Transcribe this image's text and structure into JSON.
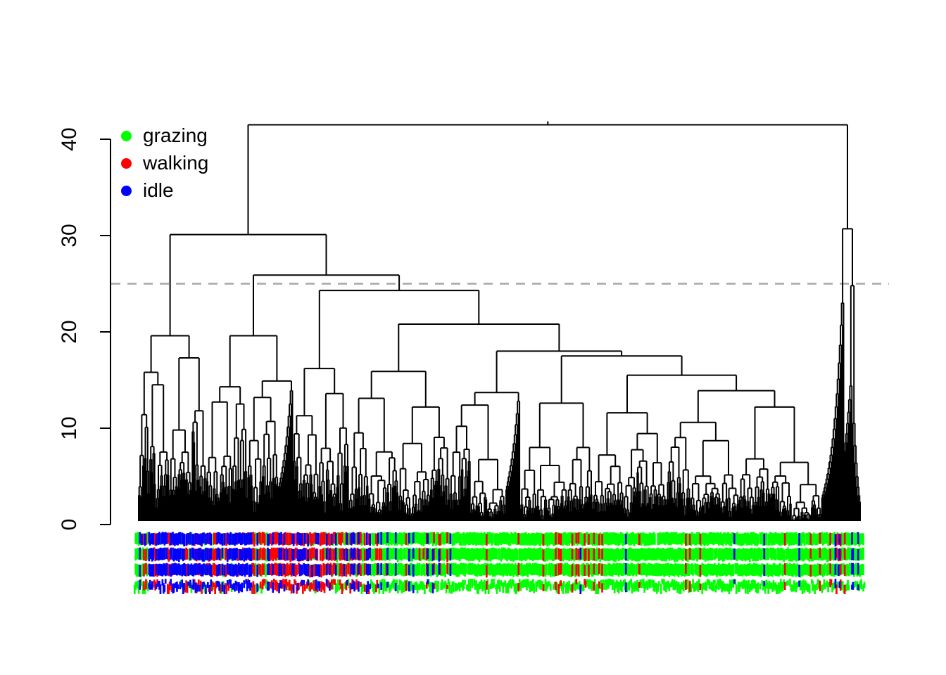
{
  "figure": {
    "background": "#ffffff"
  },
  "legend": {
    "items": [
      {
        "label": "grazing",
        "color": "#00ff00"
      },
      {
        "label": "walking",
        "color": "#ff0000"
      },
      {
        "label": "idle",
        "color": "#0000ff"
      }
    ]
  },
  "y_axis": {
    "tick_labels": [
      "0",
      "10",
      "20",
      "30",
      "40"
    ]
  },
  "chart_data": {
    "type": "dendrogram",
    "title": "",
    "xlabel": "",
    "ylabel": "",
    "y_ticks": [
      0,
      10,
      20,
      30,
      40
    ],
    "y_range": [
      0,
      42
    ],
    "grid": false,
    "legend_position": "top-left",
    "line_color": "#000000",
    "cutoff_line": {
      "height": 25,
      "color": "#a6a6a6",
      "style": "dashed"
    },
    "root_height": 41.5,
    "leaf_count": 700,
    "class_colors": {
      "grazing": "#00ff00",
      "walking": "#ff0000",
      "idle": "#0000ff"
    },
    "major_merge_heights": [
      41.5,
      30.7,
      30.1,
      25.9,
      24.8,
      24.3,
      23.0,
      20.8,
      19.6,
      18.0,
      17.5,
      16.2,
      15.9,
      15.5,
      13.9,
      13.7,
      12.6
    ],
    "skeleton": {
      "h": 41.5,
      "c": [
        {
          "h": 30.1,
          "c": [
            {
              "h": 19.6,
              "c": [
                {
                  "n": 30,
                  "h": 15.8
                },
                {
                  "n": 36,
                  "h": 17.3
                }
              ]
            },
            {
              "h": 25.9,
              "c": [
                {
                  "h": 19.6,
                  "c": [
                    {
                      "n": 40,
                      "h": 14.3
                    },
                    {
                      "h": 14.9,
                      "c": [
                        {
                          "n": 30,
                          "h": 13.2
                        },
                        {
                          "n": 14,
                          "h": 13.9,
                          "mode": "spike"
                        }
                      ]
                    }
                  ]
                },
                {
                  "h": 24.3,
                  "c": [
                    {
                      "h": 16.2,
                      "c": [
                        {
                          "n": 25,
                          "h": 11.3
                        },
                        {
                          "n": 29,
                          "h": 13.6
                        }
                      ]
                    },
                    {
                      "h": 20.8,
                      "c": [
                        {
                          "h": 15.9,
                          "c": [
                            {
                              "n": 48,
                              "h": 13.1
                            },
                            {
                              "n": 50,
                              "h": 12.2
                            }
                          ]
                        },
                        {
                          "h": 18.0,
                          "c": [
                            {
                              "h": 13.7,
                              "c": [
                                {
                                  "n": 54,
                                  "h": 12.4
                                },
                                {
                                  "n": 14,
                                  "h": 12.8,
                                  "mode": "spike"
                                }
                              ]
                            },
                            {
                              "h": 17.5,
                              "c": [
                                {
                                  "n": 70,
                                  "h": 12.6
                                },
                                {
                                  "h": 15.5,
                                  "c": [
                                    {
                                      "n": 72,
                                      "h": 11.6
                                    },
                                    {
                                      "h": 13.9,
                                      "c": [
                                        {
                                          "n": 70,
                                          "h": 10.6
                                        },
                                        {
                                          "n": 80,
                                          "h": 12.2
                                        }
                                      ]
                                    }
                                  ]
                                }
                              ]
                            }
                          ]
                        }
                      ]
                    }
                  ]
                }
              ]
            }
          ]
        },
        {
          "h": 30.7,
          "c": [
            {
              "n": 22,
              "h": 23.0,
              "mode": "spike"
            },
            {
              "h": 24.8,
              "c": [
                {
                  "n": 8,
                  "h": 14.4,
                  "mode": "spike"
                },
                {
                  "n": 8,
                  "h": 10.5,
                  "mode": "stair"
                }
              ]
            }
          ]
        }
      ]
    },
    "class_segments": [
      [
        0.0,
        0.013,
        [
          0.5,
          0.12,
          0.38
        ]
      ],
      [
        0.013,
        0.085,
        [
          0.06,
          0.12,
          0.82
        ]
      ],
      [
        0.085,
        0.125,
        [
          0.1,
          0.42,
          0.48
        ]
      ],
      [
        0.125,
        0.155,
        [
          0.07,
          0.2,
          0.73
        ]
      ],
      [
        0.155,
        0.235,
        [
          0.1,
          0.7,
          0.2
        ]
      ],
      [
        0.235,
        0.3,
        [
          0.26,
          0.54,
          0.2
        ]
      ],
      [
        0.3,
        0.345,
        [
          0.46,
          0.34,
          0.2
        ]
      ],
      [
        0.345,
        0.42,
        [
          0.8,
          0.13,
          0.07
        ]
      ],
      [
        0.42,
        0.56,
        [
          0.965,
          0.022,
          0.013
        ]
      ],
      [
        0.56,
        0.67,
        [
          0.87,
          0.11,
          0.02
        ]
      ],
      [
        0.67,
        0.72,
        [
          0.92,
          0.02,
          0.06
        ]
      ],
      [
        0.72,
        0.78,
        [
          0.94,
          0.05,
          0.01
        ]
      ],
      [
        0.78,
        0.86,
        [
          0.95,
          0.02,
          0.03
        ]
      ],
      [
        0.86,
        0.88,
        [
          0.88,
          0.02,
          0.1
        ]
      ],
      [
        0.88,
        0.94,
        [
          0.97,
          0.02,
          0.01
        ]
      ],
      [
        0.94,
        0.965,
        [
          0.86,
          0.11,
          0.03
        ]
      ],
      [
        0.965,
        1.001,
        [
          0.78,
          0.13,
          0.09
        ]
      ],
      [
        1.001,
        2.0,
        [
          1.0,
          0.0,
          0.0
        ]
      ]
    ],
    "label_band_rows": 4
  }
}
